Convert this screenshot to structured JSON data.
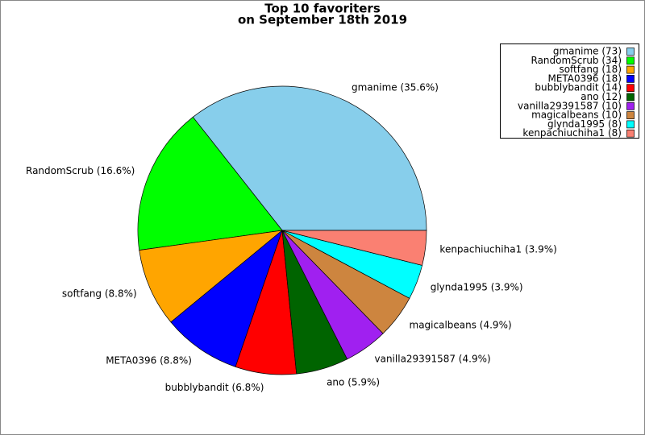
{
  "chart_data": {
    "type": "pie",
    "title": [
      "Top 10 favoriters",
      "on September 18th 2019"
    ],
    "values": [
      73,
      34,
      18,
      18,
      14,
      12,
      10,
      10,
      8,
      8
    ],
    "labels": [
      "gmanime (35.6%)",
      "RandomScrub (16.6%)",
      "softfang (8.8%)",
      "META0396 (8.8%)",
      "bubblybandit (6.8%)",
      "ano (5.9%)",
      "vanilla29391587 (4.9%)",
      "magicalbeans (4.9%)",
      "glynda1995 (3.9%)",
      "kenpachiuchiha1 (3.9%)"
    ],
    "legend": [
      "gmanime (73)",
      "RandomScrub (34)",
      "softfang (18)",
      "META0396 (18)",
      "bubblybandit (14)",
      "ano (12)",
      "vanilla29391587 (10)",
      "magicalbeans (10)",
      "glynda1995 (8)",
      "kenpachiuchiha1 (8)"
    ],
    "colors": [
      "#87ceeb",
      "#00ff00",
      "#ffa500",
      "#0000ff",
      "#ff0000",
      "#006400",
      "#a020f0",
      "#cd853f",
      "#00ffff",
      "#fa8072"
    ],
    "legend_position": "upper right"
  }
}
